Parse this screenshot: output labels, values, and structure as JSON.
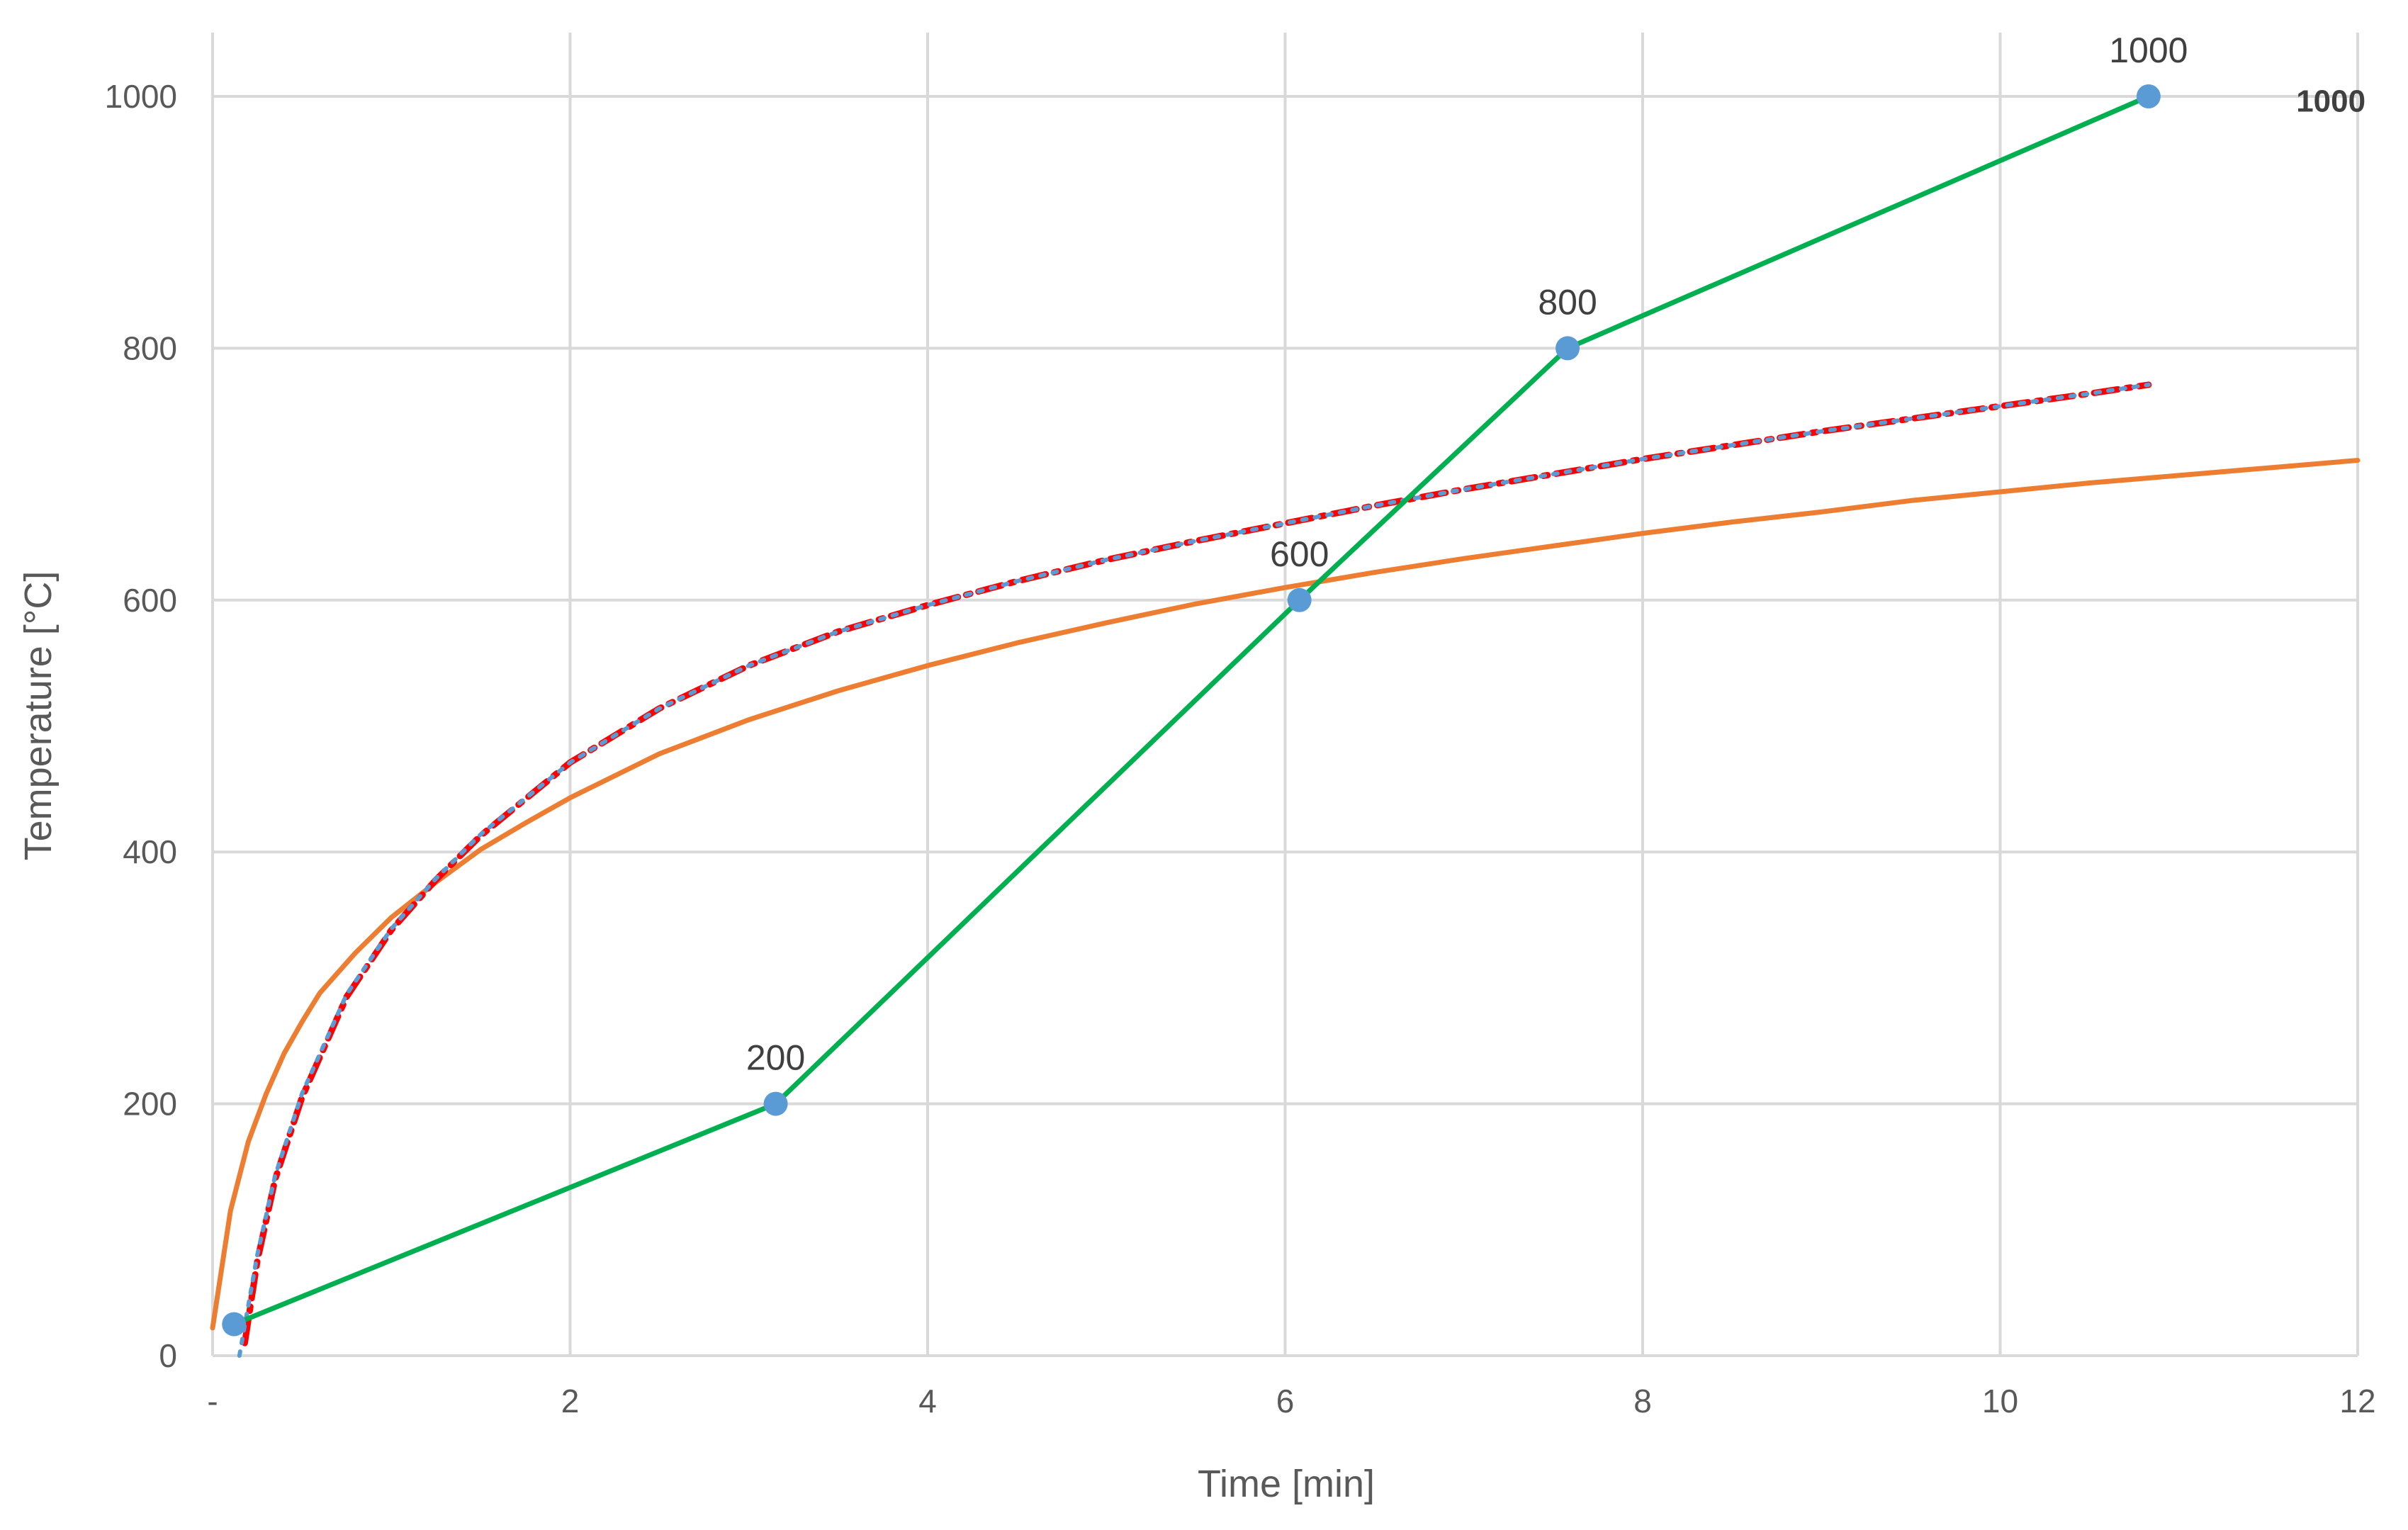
{
  "chart_data": {
    "type": "line",
    "title": "",
    "xlabel": "Time [min]",
    "ylabel": "Temperature [°C]",
    "xlim": [
      0,
      12
    ],
    "ylim": [
      0,
      1000
    ],
    "x_ticks": [
      0,
      2,
      4,
      6,
      8,
      10,
      12
    ],
    "x_tick_labels": [
      "-",
      "2",
      "4",
      "6",
      "8",
      "10",
      "12"
    ],
    "y_ticks": [
      0,
      200,
      400,
      600,
      800,
      1000
    ],
    "y_tick_labels": [
      "0",
      "200",
      "400",
      "600",
      "800",
      "1000"
    ],
    "grid": true,
    "legend": "none",
    "series": [
      {
        "color": "#ED7D31",
        "style": "solid",
        "x": [
          0,
          0.1,
          0.2,
          0.3,
          0.4,
          0.5,
          0.6,
          0.8,
          1.0,
          1.25,
          1.5,
          1.75,
          2.0,
          2.5,
          3.0,
          3.5,
          4.0,
          4.5,
          5.0,
          5.5,
          6.0,
          6.5,
          7.0,
          7.5,
          8.0,
          8.5,
          9.0,
          9.5,
          10.0,
          10.5,
          11.0,
          11.5,
          12.0
        ],
        "y": [
          22,
          115,
          170,
          208,
          240,
          265,
          288,
          320,
          348,
          376,
          402,
          423,
          443,
          478,
          505,
          528,
          548,
          566,
          582,
          597,
          610,
          622,
          633,
          643,
          653,
          662,
          670,
          679,
          686,
          693,
          699,
          705,
          711
        ]
      },
      {
        "color": "#FF0000",
        "style": "dash-dot",
        "x": [
          0.18,
          0.25,
          0.35,
          0.5,
          0.75,
          1.0,
          1.25,
          1.5,
          2.0,
          2.5,
          3.0,
          3.5,
          4.0,
          4.5,
          5.0,
          5.5,
          6.0,
          6.5,
          7.0,
          7.5,
          8.0,
          8.5,
          9.0,
          9.5,
          10.0,
          10.5,
          10.83
        ],
        "y": [
          10,
          75,
          140,
          205,
          285,
          338,
          378,
          413,
          471,
          514,
          548,
          575,
          596,
          615,
          632,
          647,
          661,
          675,
          688,
          700,
          712,
          723,
          734,
          744,
          754,
          764,
          771
        ]
      },
      {
        "color": "#5B9BD5",
        "style": "dotted",
        "x": [
          0.15,
          0.25,
          0.35,
          0.5,
          0.75,
          1.0,
          1.25,
          1.5,
          2.0,
          2.5,
          3.0,
          3.5,
          4.0,
          4.5,
          5.0,
          5.5,
          6.0,
          6.5,
          7.0,
          7.5,
          8.0,
          8.5,
          9.0,
          9.5,
          10.0,
          10.5,
          10.83
        ],
        "y": [
          0,
          80,
          143,
          208,
          287,
          339,
          379,
          414,
          471,
          514,
          548,
          575,
          596,
          615,
          632,
          647,
          661,
          675,
          688,
          700,
          712,
          723,
          734,
          744,
          754,
          764,
          771
        ]
      },
      {
        "color": "#00B050",
        "style": "solid",
        "markers": true,
        "marker_color": "#5B9BD5",
        "x": [
          0.12,
          3.15,
          6.08,
          7.58,
          10.83
        ],
        "y": [
          25,
          200,
          600,
          800,
          1000
        ],
        "point_labels": [
          "",
          "200",
          "600",
          "800",
          "1000"
        ]
      }
    ],
    "annotations": [
      {
        "text": "1000",
        "x": 11.85,
        "y": 988
      }
    ]
  }
}
